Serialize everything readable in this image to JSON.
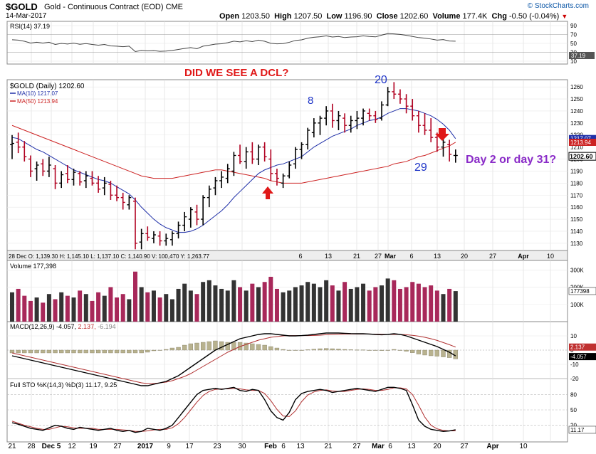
{
  "header": {
    "symbol": "$GOLD",
    "description": "Gold - Continuous Contract (EOD)",
    "exchange": "CME",
    "date": "14-Mar-2017",
    "open_label": "Open",
    "open": "1203.50",
    "high_label": "High",
    "high": "1207.50",
    "low_label": "Low",
    "low": "1196.90",
    "close_label": "Close",
    "close": "1202.60",
    "volume_label": "Volume",
    "volume": "177.4K",
    "chg_label": "Chg",
    "chg": "-0.50 (-0.04%)",
    "watermark": "© StockCharts.com"
  },
  "colors": {
    "up": "#000000",
    "down": "#b00020",
    "ma10": "#1f2fa8",
    "ma50": "#cc2222",
    "annot_red": "#e01818",
    "annot_blue": "#1f35c8",
    "annot_purple": "#8a2bc8",
    "vol_down": "#a8285a"
  },
  "panels": {
    "rsi": {
      "label": "RSI(14) 37.19",
      "ticks": [
        "90",
        "70",
        "50",
        "30",
        "10"
      ],
      "value_tag": "37.19"
    },
    "price": {
      "legend_title": "$GOLD (Daily) 1202.60",
      "ma10_label": "MA(10) 1217.07",
      "ma50_label": "MA(50) 1213.94",
      "ticks": [
        "1260",
        "1250",
        "1240",
        "1230",
        "1220",
        "1210",
        "1200",
        "1190",
        "1180",
        "1170",
        "1160",
        "1150",
        "1140",
        "1130"
      ],
      "tag_ma10": "1217.07",
      "tag_ma50": "1213.94",
      "tag_close": "1202.60",
      "info_bar": "28 Dec O: 1,139.30   H: 1,145.10   L: 1,137.10   C: 1,140.90   V: 100,470   Y: 1,263.77"
    },
    "volume": {
      "label": "Volume 177,398",
      "ticks": [
        "300K",
        "200K",
        "100K"
      ],
      "value_tag": "177398"
    },
    "macd": {
      "label": "MACD(12,26,9) -4.057, 2.137, -6.194",
      "label_a": "MACD(12,26,9) -4.057, ",
      "label_b": "2.137, ",
      "label_c": "-6.194",
      "ticks": [
        "10",
        "0",
        "-10",
        "-20"
      ],
      "tag_a": "2.137",
      "tag_b": "-4.057"
    },
    "sto": {
      "label": "Full STO %K(14,3) %D(3) 11.17, 9.25",
      "ticks": [
        "80",
        "50",
        "20"
      ],
      "value_tag": "11.17"
    }
  },
  "x_axis": {
    "price_labels": [
      "6",
      "13",
      "21",
      "27",
      "Mar",
      "6",
      "13",
      "20",
      "27",
      "Apr",
      "10"
    ],
    "bottom_labels": [
      "21",
      "28",
      "Dec 5",
      "12",
      "19",
      "27",
      "2017",
      "9",
      "17",
      "23",
      "30",
      "Feb",
      "6",
      "13",
      "21",
      "27",
      "Mar",
      "6",
      "13",
      "20",
      "27",
      "Apr",
      "10"
    ]
  },
  "annotations": {
    "question": "DID WE SEE A DCL?",
    "label_8": "8",
    "label_20": "20",
    "label_29": "29",
    "day_text": "Day 2 or day 31?"
  },
  "chart_data": {
    "type": "ohlc",
    "title": "$GOLD (Daily) 1202.60",
    "ylim": [
      1124,
      1266
    ],
    "ohlc": [
      [
        1212,
        1220,
        1200,
        1213
      ],
      [
        1214,
        1222,
        1205,
        1210
      ],
      [
        1210,
        1215,
        1198,
        1202
      ],
      [
        1200,
        1203,
        1185,
        1190
      ],
      [
        1192,
        1198,
        1182,
        1195
      ],
      [
        1196,
        1200,
        1186,
        1190
      ],
      [
        1190,
        1202,
        1185,
        1195
      ],
      [
        1192,
        1195,
        1175,
        1180
      ],
      [
        1180,
        1190,
        1176,
        1187
      ],
      [
        1188,
        1195,
        1180,
        1183
      ],
      [
        1183,
        1192,
        1178,
        1189
      ],
      [
        1188,
        1190,
        1178,
        1181
      ],
      [
        1182,
        1190,
        1176,
        1186
      ],
      [
        1184,
        1190,
        1178,
        1180
      ],
      [
        1180,
        1186,
        1172,
        1175
      ],
      [
        1176,
        1185,
        1170,
        1180
      ],
      [
        1179,
        1182,
        1166,
        1170
      ],
      [
        1170,
        1178,
        1165,
        1168
      ],
      [
        1168,
        1172,
        1158,
        1164
      ],
      [
        1162,
        1170,
        1158,
        1168
      ],
      [
        1165,
        1168,
        1125,
        1130
      ],
      [
        1131,
        1142,
        1125,
        1138
      ],
      [
        1138,
        1144,
        1132,
        1135
      ],
      [
        1134,
        1140,
        1130,
        1137
      ],
      [
        1136,
        1140,
        1128,
        1132
      ],
      [
        1132,
        1138,
        1128,
        1134
      ],
      [
        1133,
        1140,
        1128,
        1138
      ],
      [
        1138,
        1148,
        1134,
        1145
      ],
      [
        1145,
        1156,
        1140,
        1152
      ],
      [
        1150,
        1160,
        1143,
        1158
      ],
      [
        1156,
        1162,
        1145,
        1150
      ],
      [
        1150,
        1170,
        1145,
        1168
      ],
      [
        1168,
        1178,
        1160,
        1175
      ],
      [
        1176,
        1185,
        1170,
        1182
      ],
      [
        1182,
        1190,
        1176,
        1185
      ],
      [
        1184,
        1196,
        1180,
        1192
      ],
      [
        1190,
        1206,
        1186,
        1203
      ],
      [
        1203,
        1212,
        1196,
        1198
      ],
      [
        1198,
        1210,
        1192,
        1206
      ],
      [
        1206,
        1214,
        1196,
        1200
      ],
      [
        1200,
        1212,
        1195,
        1210
      ],
      [
        1210,
        1214,
        1198,
        1202
      ],
      [
        1200,
        1208,
        1182,
        1188
      ],
      [
        1188,
        1192,
        1178,
        1184
      ],
      [
        1180,
        1188,
        1176,
        1186
      ],
      [
        1186,
        1198,
        1184,
        1195
      ],
      [
        1196,
        1210,
        1192,
        1208
      ],
      [
        1208,
        1214,
        1200,
        1212
      ],
      [
        1212,
        1226,
        1208,
        1224
      ],
      [
        1222,
        1234,
        1218,
        1230
      ],
      [
        1230,
        1236,
        1220,
        1234
      ],
      [
        1234,
        1244,
        1228,
        1240
      ],
      [
        1240,
        1246,
        1226,
        1232
      ],
      [
        1232,
        1240,
        1224,
        1236
      ],
      [
        1234,
        1238,
        1222,
        1228
      ],
      [
        1228,
        1236,
        1222,
        1232
      ],
      [
        1232,
        1240,
        1225,
        1234
      ],
      [
        1234,
        1242,
        1228,
        1240
      ],
      [
        1238,
        1242,
        1232,
        1236
      ],
      [
        1236,
        1240,
        1230,
        1233
      ],
      [
        1234,
        1248,
        1232,
        1245
      ],
      [
        1245,
        1260,
        1244,
        1256
      ],
      [
        1256,
        1264,
        1250,
        1254
      ],
      [
        1254,
        1258,
        1246,
        1250
      ],
      [
        1250,
        1254,
        1238,
        1244
      ],
      [
        1244,
        1250,
        1232,
        1236
      ],
      [
        1236,
        1240,
        1222,
        1228
      ],
      [
        1228,
        1238,
        1220,
        1224
      ],
      [
        1224,
        1234,
        1214,
        1218
      ],
      [
        1218,
        1222,
        1206,
        1210
      ],
      [
        1210,
        1218,
        1202,
        1214
      ],
      [
        1212,
        1216,
        1198,
        1204
      ],
      [
        1203,
        1208,
        1197,
        1203
      ]
    ],
    "ma10": [
      1218,
      1217,
      1214,
      1211,
      1208,
      1206,
      1203,
      1200,
      1197,
      1194,
      1191,
      1189,
      1187,
      1185,
      1183,
      1182,
      1180,
      1177,
      1174,
      1171,
      1166,
      1160,
      1155,
      1150,
      1146,
      1143,
      1141,
      1139,
      1139,
      1140,
      1142,
      1145,
      1149,
      1153,
      1157,
      1162,
      1168,
      1173,
      1178,
      1183,
      1188,
      1191,
      1193,
      1195,
      1196,
      1198,
      1200,
      1202,
      1206,
      1210,
      1213,
      1216,
      1219,
      1221,
      1223,
      1225,
      1228,
      1230,
      1232,
      1233,
      1235,
      1238,
      1240,
      1242,
      1242,
      1241,
      1240,
      1238,
      1236,
      1233,
      1229,
      1224,
      1217
    ],
    "ma50": [
      1228,
      1226,
      1224,
      1222,
      1220,
      1218,
      1216,
      1214,
      1212,
      1210,
      1208,
      1206,
      1204,
      1202,
      1200,
      1198,
      1196,
      1194,
      1192,
      1190,
      1188,
      1186,
      1185,
      1184,
      1184,
      1184,
      1184,
      1185,
      1186,
      1187,
      1188,
      1189,
      1190,
      1191,
      1191,
      1190,
      1189,
      1188,
      1187,
      1186,
      1185,
      1184,
      1182,
      1181,
      1180,
      1180,
      1180,
      1180,
      1181,
      1182,
      1183,
      1184,
      1185,
      1186,
      1187,
      1188,
      1189,
      1190,
      1191,
      1192,
      1193,
      1194,
      1196,
      1197,
      1198,
      1200,
      1202,
      1203,
      1205,
      1207,
      1209,
      1211,
      1214
    ],
    "volume": [
      170,
      190,
      150,
      120,
      140,
      110,
      160,
      130,
      170,
      150,
      140,
      180,
      160,
      120,
      170,
      150,
      200,
      140,
      160,
      130,
      290,
      200,
      170,
      180,
      140,
      160,
      130,
      190,
      220,
      180,
      160,
      230,
      240,
      210,
      190,
      180,
      240,
      200,
      180,
      220,
      200,
      230,
      260,
      190,
      170,
      180,
      200,
      210,
      230,
      220,
      200,
      240,
      210,
      180,
      230,
      190,
      200,
      220,
      180,
      200,
      210,
      250,
      240,
      190,
      200,
      230,
      220,
      200,
      210,
      180,
      160,
      190,
      177
    ],
    "macd": [
      -4,
      -5,
      -6,
      -7,
      -8,
      -9,
      -10,
      -11,
      -12,
      -13,
      -14,
      -15,
      -16,
      -17,
      -18,
      -19,
      -20,
      -21,
      -22,
      -23,
      -24,
      -25,
      -25,
      -24,
      -23,
      -22,
      -20,
      -18,
      -15,
      -12,
      -9,
      -6,
      -3,
      0,
      2,
      4,
      6,
      8,
      9,
      10,
      11,
      11.5,
      11.5,
      11,
      10.5,
      10,
      10,
      10.2,
      10.5,
      11,
      11.5,
      12,
      12,
      12,
      11.8,
      11.6,
      11.5,
      11.5,
      11.3,
      11,
      10.8,
      11,
      11.5,
      11,
      10,
      8.5,
      7,
      5.5,
      4,
      2.5,
      0.5,
      -1.5,
      -4.057
    ],
    "signal": [
      -2,
      -3,
      -4,
      -5,
      -6,
      -7,
      -8,
      -9,
      -10,
      -11,
      -12,
      -13,
      -14,
      -15,
      -16,
      -17,
      -18,
      -19,
      -20,
      -21,
      -22,
      -23,
      -23.5,
      -23.5,
      -23,
      -22.5,
      -21.5,
      -20,
      -18.5,
      -16.5,
      -14,
      -11.5,
      -9,
      -6.5,
      -4,
      -1.5,
      0.5,
      2.5,
      4,
      5.5,
      7,
      8,
      9,
      9.5,
      10,
      10.2,
      10.2,
      10.2,
      10.2,
      10.3,
      10.5,
      10.8,
      11,
      11.2,
      11.3,
      11.3,
      11.3,
      11.3,
      11.3,
      11.2,
      11.1,
      11,
      11,
      11,
      10.8,
      10.4,
      9.8,
      9,
      8,
      6.8,
      5.3,
      3.8,
      2.137
    ],
    "sto_k": [
      25,
      22,
      18,
      14,
      12,
      10,
      15,
      20,
      18,
      14,
      12,
      16,
      14,
      12,
      10,
      12,
      14,
      10,
      8,
      10,
      6,
      8,
      14,
      12,
      10,
      14,
      20,
      35,
      50,
      65,
      80,
      88,
      90,
      92,
      90,
      92,
      94,
      88,
      86,
      90,
      88,
      70,
      48,
      35,
      30,
      45,
      70,
      82,
      86,
      88,
      90,
      88,
      84,
      86,
      88,
      90,
      92,
      90,
      88,
      86,
      90,
      94,
      94,
      92,
      88,
      60,
      30,
      18,
      12,
      10,
      8,
      9,
      11.17
    ],
    "sto_d": [
      28,
      24,
      20,
      17,
      14,
      12,
      12,
      15,
      18,
      17,
      15,
      14,
      14,
      14,
      12,
      12,
      12,
      12,
      11,
      10,
      8,
      8,
      9,
      11,
      12,
      12,
      15,
      23,
      35,
      50,
      65,
      78,
      86,
      90,
      91,
      91,
      92,
      91,
      89,
      88,
      88,
      82,
      68,
      51,
      38,
      37,
      48,
      66,
      79,
      85,
      88,
      89,
      87,
      86,
      86,
      88,
      90,
      91,
      90,
      88,
      88,
      90,
      93,
      93,
      91,
      80,
      59,
      36,
      20,
      13,
      10,
      9,
      9.25
    ]
  }
}
